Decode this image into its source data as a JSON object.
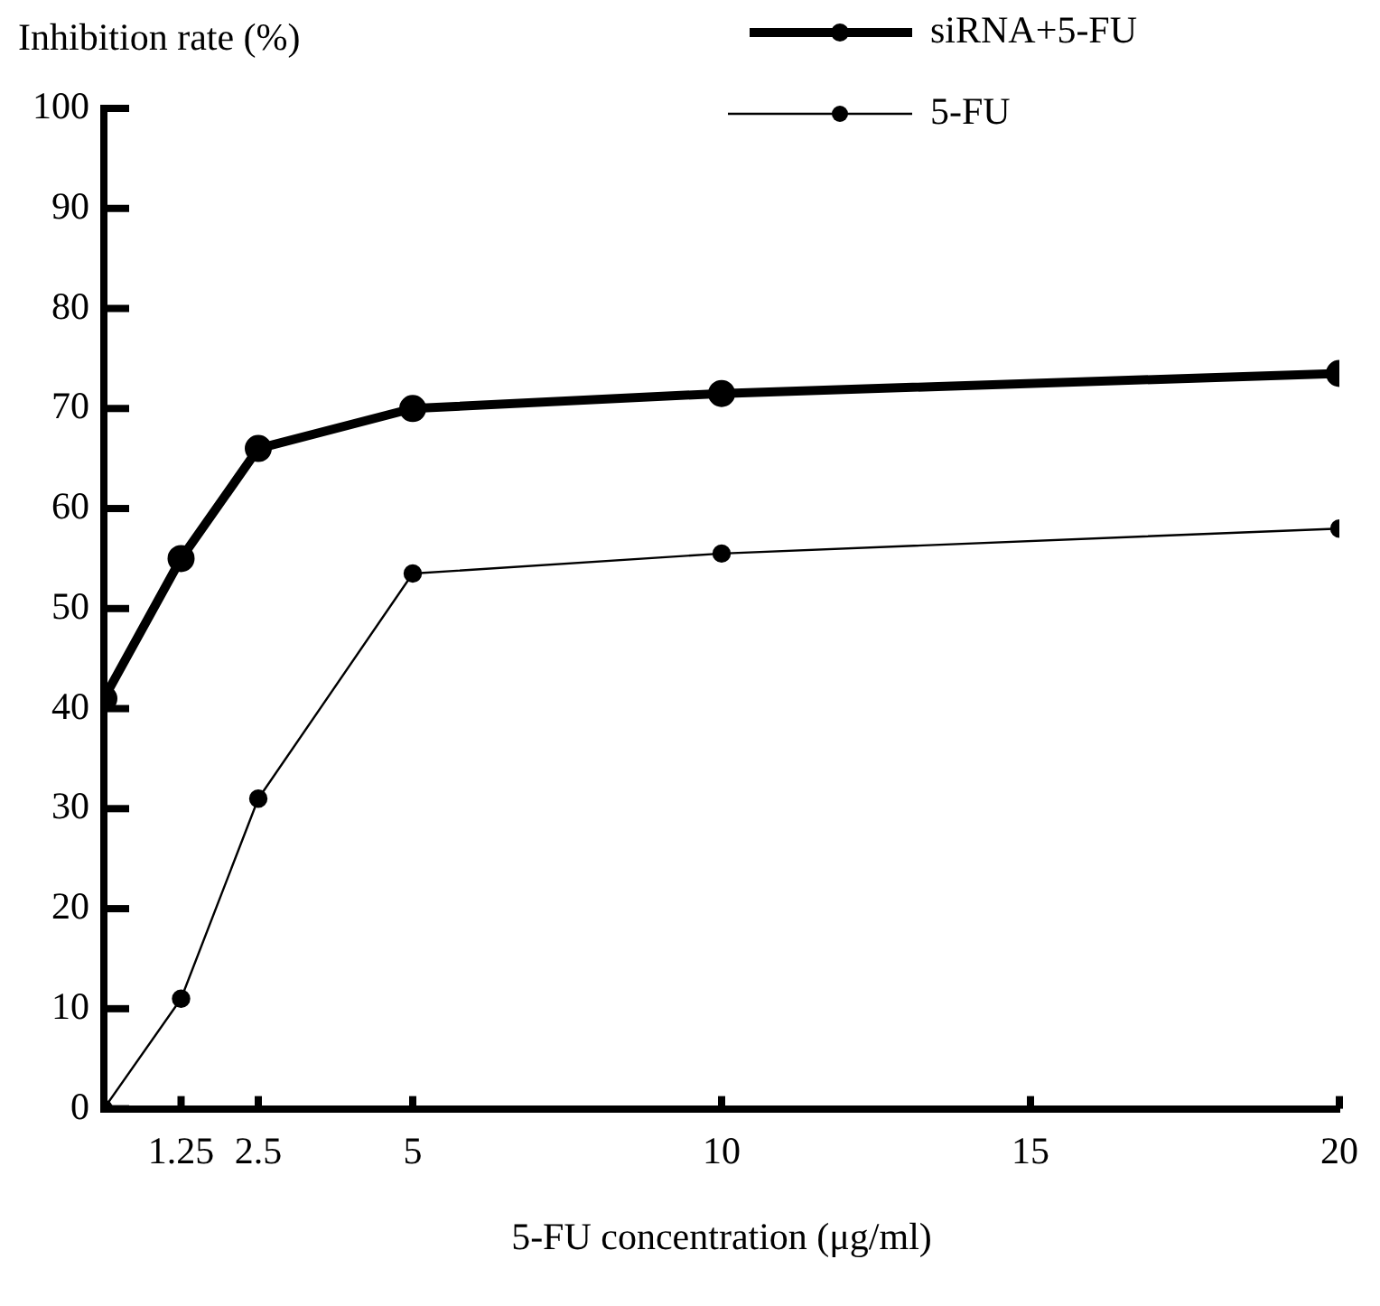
{
  "chart_data": {
    "type": "line",
    "xlabel": "5-FU concentration (μg/ml)",
    "ylabel": "Inhibition rate (%)",
    "x": [
      0,
      1.25,
      2.5,
      5,
      10,
      20
    ],
    "series": [
      {
        "name": "siRNA+5-FU",
        "color": "#000000",
        "values": [
          41,
          55,
          66,
          70,
          71.5,
          73.5
        ]
      },
      {
        "name": "5-FU",
        "color": "#000000",
        "values": [
          0,
          11,
          31,
          53.5,
          55.5,
          58
        ]
      }
    ],
    "xlim": [
      0,
      20
    ],
    "xticks": [
      1.25,
      2.5,
      5,
      10,
      15,
      20
    ],
    "ylim": [
      0,
      100
    ],
    "yticks": [
      0,
      10,
      20,
      30,
      40,
      50,
      60,
      70,
      80,
      90,
      100
    ],
    "grid": false,
    "legend": "top right",
    "marker": "circle",
    "line_style": "solid"
  }
}
